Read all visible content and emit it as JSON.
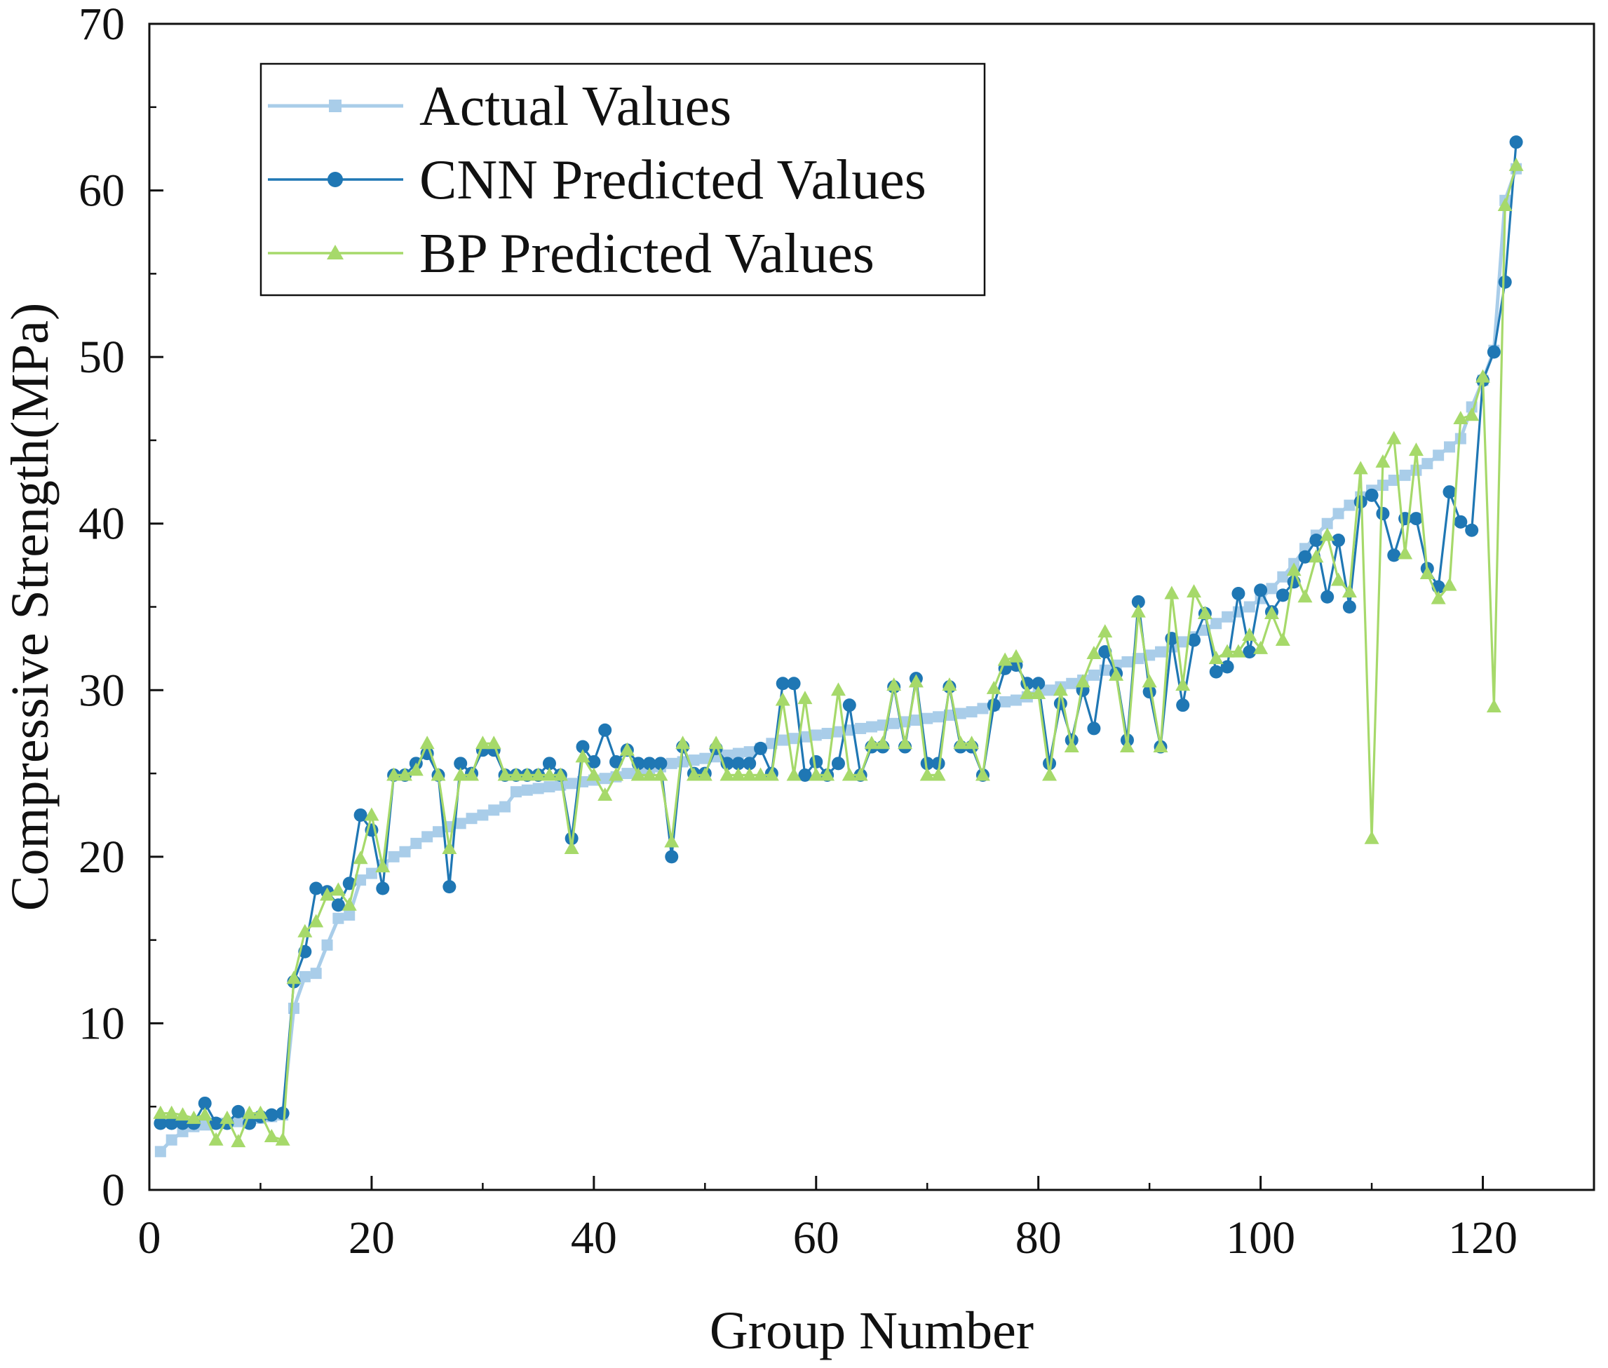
{
  "chart_data": {
    "type": "line",
    "title": "",
    "xlabel": "Group Number",
    "ylabel": "Compressive Strength(MPa)",
    "xlim": [
      0,
      130
    ],
    "ylim": [
      0,
      70
    ],
    "xticks": [
      "0",
      "20",
      "40",
      "60",
      "80",
      "100",
      "120"
    ],
    "yticks": [
      "0",
      "10",
      "20",
      "30",
      "40",
      "50",
      "60",
      "70"
    ],
    "grid": false,
    "legend_position": "top-left",
    "x": [
      1,
      2,
      3,
      4,
      5,
      6,
      7,
      8,
      9,
      10,
      11,
      12,
      13,
      14,
      15,
      16,
      17,
      18,
      19,
      20,
      21,
      22,
      23,
      24,
      25,
      26,
      27,
      28,
      29,
      30,
      31,
      32,
      33,
      34,
      35,
      36,
      37,
      38,
      39,
      40,
      41,
      42,
      43,
      44,
      45,
      46,
      47,
      48,
      49,
      50,
      51,
      52,
      53,
      54,
      55,
      56,
      57,
      58,
      59,
      60,
      61,
      62,
      63,
      64,
      65,
      66,
      67,
      68,
      69,
      70,
      71,
      72,
      73,
      74,
      75,
      76,
      77,
      78,
      79,
      80,
      81,
      82,
      83,
      84,
      85,
      86,
      87,
      88,
      89,
      90,
      91,
      92,
      93,
      94,
      95,
      96,
      97,
      98,
      99,
      100,
      101,
      102,
      103,
      104,
      105,
      106,
      107,
      108,
      109,
      110,
      111,
      112,
      113,
      114,
      115,
      116,
      117,
      118,
      119,
      120,
      121,
      122,
      123
    ],
    "series": [
      {
        "name": "Actual Values",
        "color": "#a9cde9",
        "marker": "square",
        "values": [
          2.3,
          3.0,
          3.5,
          3.8,
          3.9,
          4.0,
          4.0,
          4.1,
          4.2,
          4.3,
          4.4,
          4.5,
          10.9,
          12.8,
          13.0,
          14.7,
          16.3,
          16.5,
          18.6,
          19.0,
          19.5,
          20.0,
          20.3,
          20.8,
          21.2,
          21.5,
          21.8,
          22.0,
          22.3,
          22.5,
          22.8,
          23.0,
          23.9,
          24.0,
          24.1,
          24.2,
          24.3,
          24.4,
          24.5,
          24.6,
          24.7,
          24.8,
          25.0,
          25.1,
          25.3,
          25.4,
          25.6,
          25.7,
          25.8,
          25.9,
          26.0,
          26.1,
          26.2,
          26.3,
          26.5,
          26.8,
          27.0,
          27.1,
          27.2,
          27.3,
          27.4,
          27.5,
          27.6,
          27.7,
          27.8,
          27.9,
          28.0,
          28.1,
          28.2,
          28.3,
          28.4,
          28.5,
          28.6,
          28.7,
          28.9,
          29.1,
          29.3,
          29.4,
          29.6,
          29.8,
          30.0,
          30.2,
          30.4,
          30.6,
          30.9,
          31.2,
          31.5,
          31.7,
          31.9,
          32.1,
          32.3,
          32.6,
          32.9,
          33.2,
          33.6,
          34.0,
          34.4,
          34.7,
          35.0,
          35.5,
          36.1,
          36.8,
          37.6,
          38.5,
          39.3,
          40.0,
          40.6,
          41.1,
          41.6,
          42.0,
          42.3,
          42.6,
          42.9,
          43.2,
          43.6,
          44.1,
          44.6,
          45.1,
          47.0,
          48.6,
          50.4,
          59.4,
          61.3
        ]
      },
      {
        "name": "CNN Predicted Values",
        "color": "#1f77b4",
        "marker": "circle",
        "values": [
          4.0,
          4.0,
          4.0,
          4.0,
          5.2,
          4.0,
          4.0,
          4.7,
          4.0,
          4.4,
          4.5,
          4.6,
          12.5,
          14.3,
          18.1,
          17.9,
          17.1,
          18.4,
          22.5,
          21.6,
          18.1,
          24.9,
          24.9,
          25.6,
          26.2,
          24.9,
          18.2,
          25.6,
          25.0,
          26.4,
          26.4,
          24.9,
          24.9,
          24.9,
          24.9,
          25.6,
          24.9,
          21.1,
          26.6,
          25.7,
          27.6,
          25.7,
          26.4,
          25.6,
          25.6,
          25.6,
          20.0,
          26.6,
          25.0,
          25.0,
          26.5,
          25.6,
          25.6,
          25.6,
          26.5,
          25.0,
          30.4,
          30.4,
          24.9,
          25.7,
          24.9,
          25.6,
          29.1,
          24.9,
          26.6,
          26.6,
          30.2,
          26.6,
          30.7,
          25.6,
          25.6,
          30.2,
          26.6,
          26.6,
          24.9,
          29.1,
          31.3,
          31.5,
          30.4,
          30.4,
          25.6,
          29.2,
          27.0,
          30.0,
          27.7,
          32.3,
          31.0,
          27.0,
          35.3,
          29.9,
          26.6,
          33.1,
          29.1,
          33.0,
          34.6,
          31.1,
          31.4,
          35.8,
          32.3,
          36.0,
          34.7,
          35.7,
          36.5,
          38.0,
          39.0,
          35.6,
          39.0,
          35.0,
          41.3,
          41.7,
          40.6,
          38.1,
          40.3,
          40.3,
          37.3,
          36.2,
          41.9,
          40.1,
          39.6,
          48.6,
          50.3,
          54.5,
          62.9
        ]
      },
      {
        "name": "BP Predicted Values",
        "color": "#a6d96a",
        "marker": "triangle",
        "values": [
          4.6,
          4.6,
          4.5,
          4.3,
          4.5,
          3.0,
          4.3,
          2.9,
          4.6,
          4.6,
          3.2,
          3.0,
          12.7,
          15.5,
          16.1,
          17.7,
          18.0,
          17.1,
          19.9,
          22.5,
          19.4,
          24.9,
          24.9,
          25.2,
          26.8,
          24.9,
          20.5,
          24.9,
          24.9,
          26.8,
          26.8,
          24.9,
          24.9,
          24.9,
          24.9,
          24.9,
          24.9,
          20.5,
          26.0,
          24.9,
          23.7,
          24.9,
          26.4,
          24.9,
          24.9,
          24.9,
          20.9,
          26.8,
          24.9,
          24.9,
          26.8,
          24.9,
          24.9,
          24.9,
          24.9,
          24.9,
          29.4,
          24.9,
          29.5,
          24.9,
          24.9,
          30.0,
          24.9,
          24.9,
          26.8,
          26.8,
          30.3,
          26.8,
          30.5,
          24.9,
          24.9,
          30.3,
          26.8,
          26.8,
          24.9,
          30.1,
          31.8,
          32.0,
          29.8,
          29.8,
          24.9,
          30.0,
          26.6,
          30.5,
          32.2,
          33.5,
          30.9,
          26.6,
          34.7,
          30.5,
          26.6,
          35.8,
          30.3,
          35.9,
          34.6,
          31.9,
          32.3,
          32.3,
          33.3,
          32.5,
          34.6,
          33.0,
          37.2,
          35.6,
          38.0,
          39.3,
          36.6,
          35.9,
          43.3,
          21.1,
          43.7,
          45.1,
          38.2,
          44.4,
          37.0,
          35.5,
          36.3,
          46.3,
          46.5,
          48.8,
          29.0,
          59.1,
          61.5
        ]
      }
    ]
  }
}
